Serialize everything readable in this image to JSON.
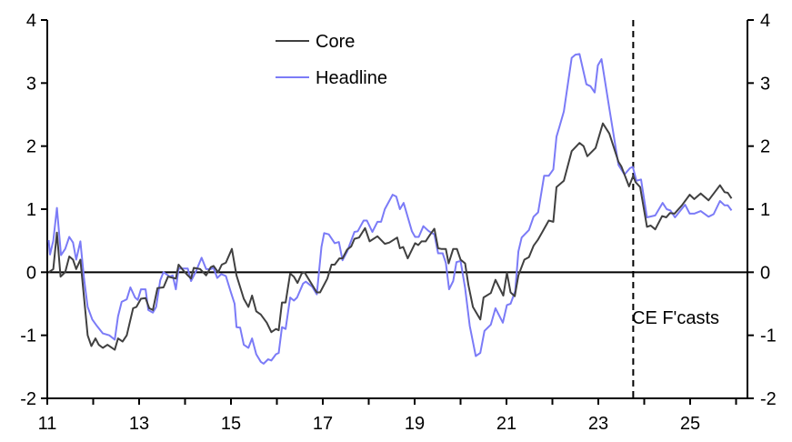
{
  "chart_data": {
    "type": "line",
    "title": "",
    "xlabel": "",
    "ylabel": "",
    "xlim": [
      2011,
      2026.25
    ],
    "ylim": [
      -2,
      4
    ],
    "y_ticks": [
      -2,
      -1,
      0,
      1,
      2,
      3,
      4
    ],
    "y_tick_labels": [
      "-2",
      "-1",
      "0",
      "1",
      "2",
      "3",
      "4"
    ],
    "x_ticks": [
      2011,
      2013,
      2015,
      2017,
      2019,
      2021,
      2023,
      2025
    ],
    "x_tick_labels": [
      "11",
      "13",
      "15",
      "17",
      "19",
      "21",
      "23",
      "25"
    ],
    "grid": false,
    "legend_position": "top-center",
    "forecast_start": 2023.76,
    "forecast_label": "CE F'casts",
    "series": [
      {
        "name": "Core",
        "color": "#404040",
        "points": [
          [
            2011.03,
            0
          ],
          [
            2011.13,
            0.05
          ],
          [
            2011.21,
            0.63
          ],
          [
            2011.29,
            -0.07
          ],
          [
            2011.39,
            0
          ],
          [
            2011.48,
            0.25
          ],
          [
            2011.56,
            0.2
          ],
          [
            2011.63,
            0.05
          ],
          [
            2011.72,
            0.2
          ],
          [
            2011.8,
            -0.4
          ],
          [
            2011.88,
            -1.0
          ],
          [
            2011.96,
            -1.17
          ],
          [
            2012.05,
            -1.05
          ],
          [
            2012.12,
            -1.15
          ],
          [
            2012.21,
            -1.2
          ],
          [
            2012.31,
            -1.15
          ],
          [
            2012.47,
            -1.23
          ],
          [
            2012.54,
            -1.05
          ],
          [
            2012.64,
            -1.1
          ],
          [
            2012.73,
            -1.0
          ],
          [
            2012.87,
            -0.57
          ],
          [
            2012.94,
            -0.55
          ],
          [
            2013.04,
            -0.42
          ],
          [
            2013.14,
            -0.41
          ],
          [
            2013.22,
            -0.57
          ],
          [
            2013.3,
            -0.6
          ],
          [
            2013.4,
            -0.25
          ],
          [
            2013.53,
            -0.24
          ],
          [
            2013.63,
            -0.07
          ],
          [
            2013.8,
            -0.1
          ],
          [
            2013.86,
            0.12
          ],
          [
            2013.96,
            0.03
          ],
          [
            2014.06,
            -0.05
          ],
          [
            2014.13,
            -0.1
          ],
          [
            2014.19,
            0.07
          ],
          [
            2014.33,
            0.05
          ],
          [
            2014.46,
            -0.05
          ],
          [
            2014.56,
            0.08
          ],
          [
            2014.62,
            0.1
          ],
          [
            2014.72,
            0
          ],
          [
            2014.8,
            0.12
          ],
          [
            2014.89,
            0.15
          ],
          [
            2015.02,
            0.37
          ],
          [
            2015.12,
            -0.05
          ],
          [
            2015.28,
            -0.42
          ],
          [
            2015.38,
            -0.55
          ],
          [
            2015.46,
            -0.37
          ],
          [
            2015.55,
            -0.62
          ],
          [
            2015.65,
            -0.67
          ],
          [
            2015.78,
            -0.8
          ],
          [
            2015.88,
            -0.95
          ],
          [
            2015.98,
            -0.9
          ],
          [
            2016.04,
            -0.92
          ],
          [
            2016.11,
            -0.48
          ],
          [
            2016.19,
            -0.48
          ],
          [
            2016.29,
            -0.02
          ],
          [
            2016.37,
            -0.07
          ],
          [
            2016.45,
            -0.17
          ],
          [
            2016.54,
            -0.02
          ],
          [
            2016.6,
            0
          ],
          [
            2016.7,
            -0.12
          ],
          [
            2016.87,
            -0.32
          ],
          [
            2016.94,
            -0.32
          ],
          [
            2017.1,
            -0.1
          ],
          [
            2017.19,
            0.12
          ],
          [
            2017.26,
            0.12
          ],
          [
            2017.36,
            0.22
          ],
          [
            2017.43,
            0.22
          ],
          [
            2017.53,
            0.36
          ],
          [
            2017.62,
            0.41
          ],
          [
            2017.69,
            0.53
          ],
          [
            2017.79,
            0.55
          ],
          [
            2017.92,
            0.7
          ],
          [
            2018.02,
            0.49
          ],
          [
            2018.19,
            0.57
          ],
          [
            2018.35,
            0.45
          ],
          [
            2018.45,
            0.47
          ],
          [
            2018.62,
            0.55
          ],
          [
            2018.68,
            0.38
          ],
          [
            2018.75,
            0.4
          ],
          [
            2018.85,
            0.22
          ],
          [
            2019.01,
            0.46
          ],
          [
            2019.08,
            0.43
          ],
          [
            2019.15,
            0.49
          ],
          [
            2019.24,
            0.49
          ],
          [
            2019.34,
            0.6
          ],
          [
            2019.43,
            0.69
          ],
          [
            2019.51,
            0.38
          ],
          [
            2019.58,
            0.37
          ],
          [
            2019.68,
            0.37
          ],
          [
            2019.74,
            0.14
          ],
          [
            2019.84,
            0.37
          ],
          [
            2019.92,
            0.37
          ],
          [
            2020.0,
            0.2
          ],
          [
            2020.1,
            0.14
          ],
          [
            2020.17,
            -0.2
          ],
          [
            2020.27,
            -0.55
          ],
          [
            2020.43,
            -0.75
          ],
          [
            2020.5,
            -0.4
          ],
          [
            2020.66,
            -0.33
          ],
          [
            2020.76,
            -0.12
          ],
          [
            2020.93,
            -0.37
          ],
          [
            2021.01,
            -0.01
          ],
          [
            2021.09,
            -0.32
          ],
          [
            2021.18,
            -0.38
          ],
          [
            2021.26,
            -0.05
          ],
          [
            2021.39,
            0.2
          ],
          [
            2021.49,
            0.24
          ],
          [
            2021.59,
            0.42
          ],
          [
            2021.69,
            0.52
          ],
          [
            2021.79,
            0.65
          ],
          [
            2021.92,
            0.82
          ],
          [
            2022.02,
            0.8
          ],
          [
            2022.09,
            1.35
          ],
          [
            2022.25,
            1.45
          ],
          [
            2022.42,
            1.92
          ],
          [
            2022.59,
            2.05
          ],
          [
            2022.68,
            2.0
          ],
          [
            2022.76,
            1.84
          ],
          [
            2022.94,
            1.97
          ],
          [
            2023.1,
            2.36
          ],
          [
            2023.24,
            2.2
          ],
          [
            2023.44,
            1.75
          ],
          [
            2023.5,
            1.68
          ],
          [
            2023.67,
            1.36
          ],
          [
            2023.76,
            1.53
          ],
          [
            2023.81,
            1.43
          ],
          [
            2023.91,
            1.35
          ],
          [
            2024.06,
            0.72
          ],
          [
            2024.14,
            0.74
          ],
          [
            2024.24,
            0.68
          ],
          [
            2024.39,
            0.89
          ],
          [
            2024.48,
            0.87
          ],
          [
            2024.56,
            0.94
          ],
          [
            2024.66,
            0.93
          ],
          [
            2024.82,
            1.06
          ],
          [
            2024.99,
            1.23
          ],
          [
            2025.09,
            1.16
          ],
          [
            2025.23,
            1.25
          ],
          [
            2025.4,
            1.14
          ],
          [
            2025.65,
            1.38
          ],
          [
            2025.75,
            1.27
          ],
          [
            2025.82,
            1.26
          ],
          [
            2025.9,
            1.17
          ]
        ]
      },
      {
        "name": "Headline",
        "color": "#7b7bf7",
        "points": [
          [
            2011.03,
            0.51
          ],
          [
            2011.06,
            0.28
          ],
          [
            2011.13,
            0.5
          ],
          [
            2011.21,
            1.02
          ],
          [
            2011.3,
            0.27
          ],
          [
            2011.39,
            0.37
          ],
          [
            2011.48,
            0.56
          ],
          [
            2011.56,
            0.47
          ],
          [
            2011.63,
            0.2
          ],
          [
            2011.72,
            0.49
          ],
          [
            2011.8,
            -0.1
          ],
          [
            2011.88,
            -0.55
          ],
          [
            2011.98,
            -0.75
          ],
          [
            2012.08,
            -0.85
          ],
          [
            2012.21,
            -0.97
          ],
          [
            2012.35,
            -1.0
          ],
          [
            2012.47,
            -1.07
          ],
          [
            2012.54,
            -0.7
          ],
          [
            2012.62,
            -0.47
          ],
          [
            2012.73,
            -0.43
          ],
          [
            2012.81,
            -0.24
          ],
          [
            2012.91,
            -0.4
          ],
          [
            2012.97,
            -0.44
          ],
          [
            2013.04,
            -0.27
          ],
          [
            2013.14,
            -0.27
          ],
          [
            2013.2,
            -0.6
          ],
          [
            2013.3,
            -0.64
          ],
          [
            2013.37,
            -0.55
          ],
          [
            2013.46,
            -0.13
          ],
          [
            2013.53,
            0
          ],
          [
            2013.67,
            -0.07
          ],
          [
            2013.73,
            -0.05
          ],
          [
            2013.8,
            -0.27
          ],
          [
            2013.86,
            0.06
          ],
          [
            2013.96,
            0.06
          ],
          [
            2014.06,
            0.06
          ],
          [
            2014.13,
            -0.14
          ],
          [
            2014.23,
            0
          ],
          [
            2014.36,
            0.23
          ],
          [
            2014.46,
            0.05
          ],
          [
            2014.56,
            0.05
          ],
          [
            2014.62,
            0.07
          ],
          [
            2014.7,
            -0.09
          ],
          [
            2014.79,
            -0.03
          ],
          [
            2014.89,
            -0.06
          ],
          [
            2014.99,
            -0.3
          ],
          [
            2015.08,
            -0.5
          ],
          [
            2015.12,
            -0.87
          ],
          [
            2015.2,
            -0.88
          ],
          [
            2015.28,
            -1.15
          ],
          [
            2015.38,
            -1.2
          ],
          [
            2015.46,
            -1.05
          ],
          [
            2015.55,
            -1.3
          ],
          [
            2015.65,
            -1.42
          ],
          [
            2015.71,
            -1.45
          ],
          [
            2015.81,
            -1.38
          ],
          [
            2015.88,
            -1.4
          ],
          [
            2015.98,
            -1.3
          ],
          [
            2016.04,
            -1.28
          ],
          [
            2016.11,
            -0.87
          ],
          [
            2016.19,
            -0.9
          ],
          [
            2016.29,
            -0.4
          ],
          [
            2016.37,
            -0.45
          ],
          [
            2016.44,
            -0.4
          ],
          [
            2016.57,
            -0.18
          ],
          [
            2016.63,
            -0.15
          ],
          [
            2016.77,
            -0.23
          ],
          [
            2016.87,
            -0.35
          ],
          [
            2016.97,
            0.4
          ],
          [
            2017.03,
            0.62
          ],
          [
            2017.13,
            0.6
          ],
          [
            2017.26,
            0.46
          ],
          [
            2017.35,
            0.48
          ],
          [
            2017.43,
            0.19
          ],
          [
            2017.53,
            0.33
          ],
          [
            2017.69,
            0.64
          ],
          [
            2017.76,
            0.65
          ],
          [
            2017.89,
            0.82
          ],
          [
            2017.96,
            0.82
          ],
          [
            2018.08,
            0.64
          ],
          [
            2018.19,
            0.8
          ],
          [
            2018.27,
            0.8
          ],
          [
            2018.35,
            1.0
          ],
          [
            2018.52,
            1.23
          ],
          [
            2018.6,
            1.2
          ],
          [
            2018.68,
            1.0
          ],
          [
            2018.76,
            1.1
          ],
          [
            2018.94,
            0.65
          ],
          [
            2019.01,
            0.56
          ],
          [
            2019.09,
            0.56
          ],
          [
            2019.19,
            0.73
          ],
          [
            2019.31,
            0.65
          ],
          [
            2019.43,
            0.6
          ],
          [
            2019.51,
            0.3
          ],
          [
            2019.61,
            0.3
          ],
          [
            2019.68,
            0.15
          ],
          [
            2019.75,
            -0.27
          ],
          [
            2019.84,
            -0.14
          ],
          [
            2019.91,
            0.16
          ],
          [
            2020.0,
            0.18
          ],
          [
            2020.1,
            -0.25
          ],
          [
            2020.2,
            -0.85
          ],
          [
            2020.33,
            -1.33
          ],
          [
            2020.43,
            -1.28
          ],
          [
            2020.52,
            -0.93
          ],
          [
            2020.66,
            -0.83
          ],
          [
            2020.76,
            -0.57
          ],
          [
            2020.92,
            -0.8
          ],
          [
            2021.01,
            -0.52
          ],
          [
            2021.09,
            -0.5
          ],
          [
            2021.19,
            -0.3
          ],
          [
            2021.26,
            0.33
          ],
          [
            2021.33,
            0.55
          ],
          [
            2021.49,
            0.67
          ],
          [
            2021.59,
            0.88
          ],
          [
            2021.69,
            0.95
          ],
          [
            2021.82,
            1.53
          ],
          [
            2021.92,
            1.53
          ],
          [
            2022.02,
            1.63
          ],
          [
            2022.09,
            2.15
          ],
          [
            2022.15,
            2.3
          ],
          [
            2022.25,
            2.55
          ],
          [
            2022.42,
            3.4
          ],
          [
            2022.5,
            3.45
          ],
          [
            2022.59,
            3.46
          ],
          [
            2022.74,
            2.98
          ],
          [
            2022.83,
            2.95
          ],
          [
            2022.92,
            2.85
          ],
          [
            2022.99,
            3.28
          ],
          [
            2023.07,
            3.38
          ],
          [
            2023.24,
            2.6
          ],
          [
            2023.44,
            1.7
          ],
          [
            2023.57,
            1.55
          ],
          [
            2023.69,
            1.65
          ],
          [
            2023.75,
            1.67
          ],
          [
            2023.83,
            1.45
          ],
          [
            2023.93,
            1.47
          ],
          [
            2024.06,
            0.87
          ],
          [
            2024.24,
            0.9
          ],
          [
            2024.4,
            1.1
          ],
          [
            2024.49,
            1.0
          ],
          [
            2024.57,
            0.98
          ],
          [
            2024.67,
            0.87
          ],
          [
            2024.89,
            1.07
          ],
          [
            2024.99,
            0.93
          ],
          [
            2025.09,
            0.93
          ],
          [
            2025.23,
            0.97
          ],
          [
            2025.4,
            0.88
          ],
          [
            2025.51,
            0.92
          ],
          [
            2025.65,
            1.13
          ],
          [
            2025.75,
            1.06
          ],
          [
            2025.82,
            1.06
          ],
          [
            2025.9,
            0.98
          ]
        ]
      }
    ]
  }
}
